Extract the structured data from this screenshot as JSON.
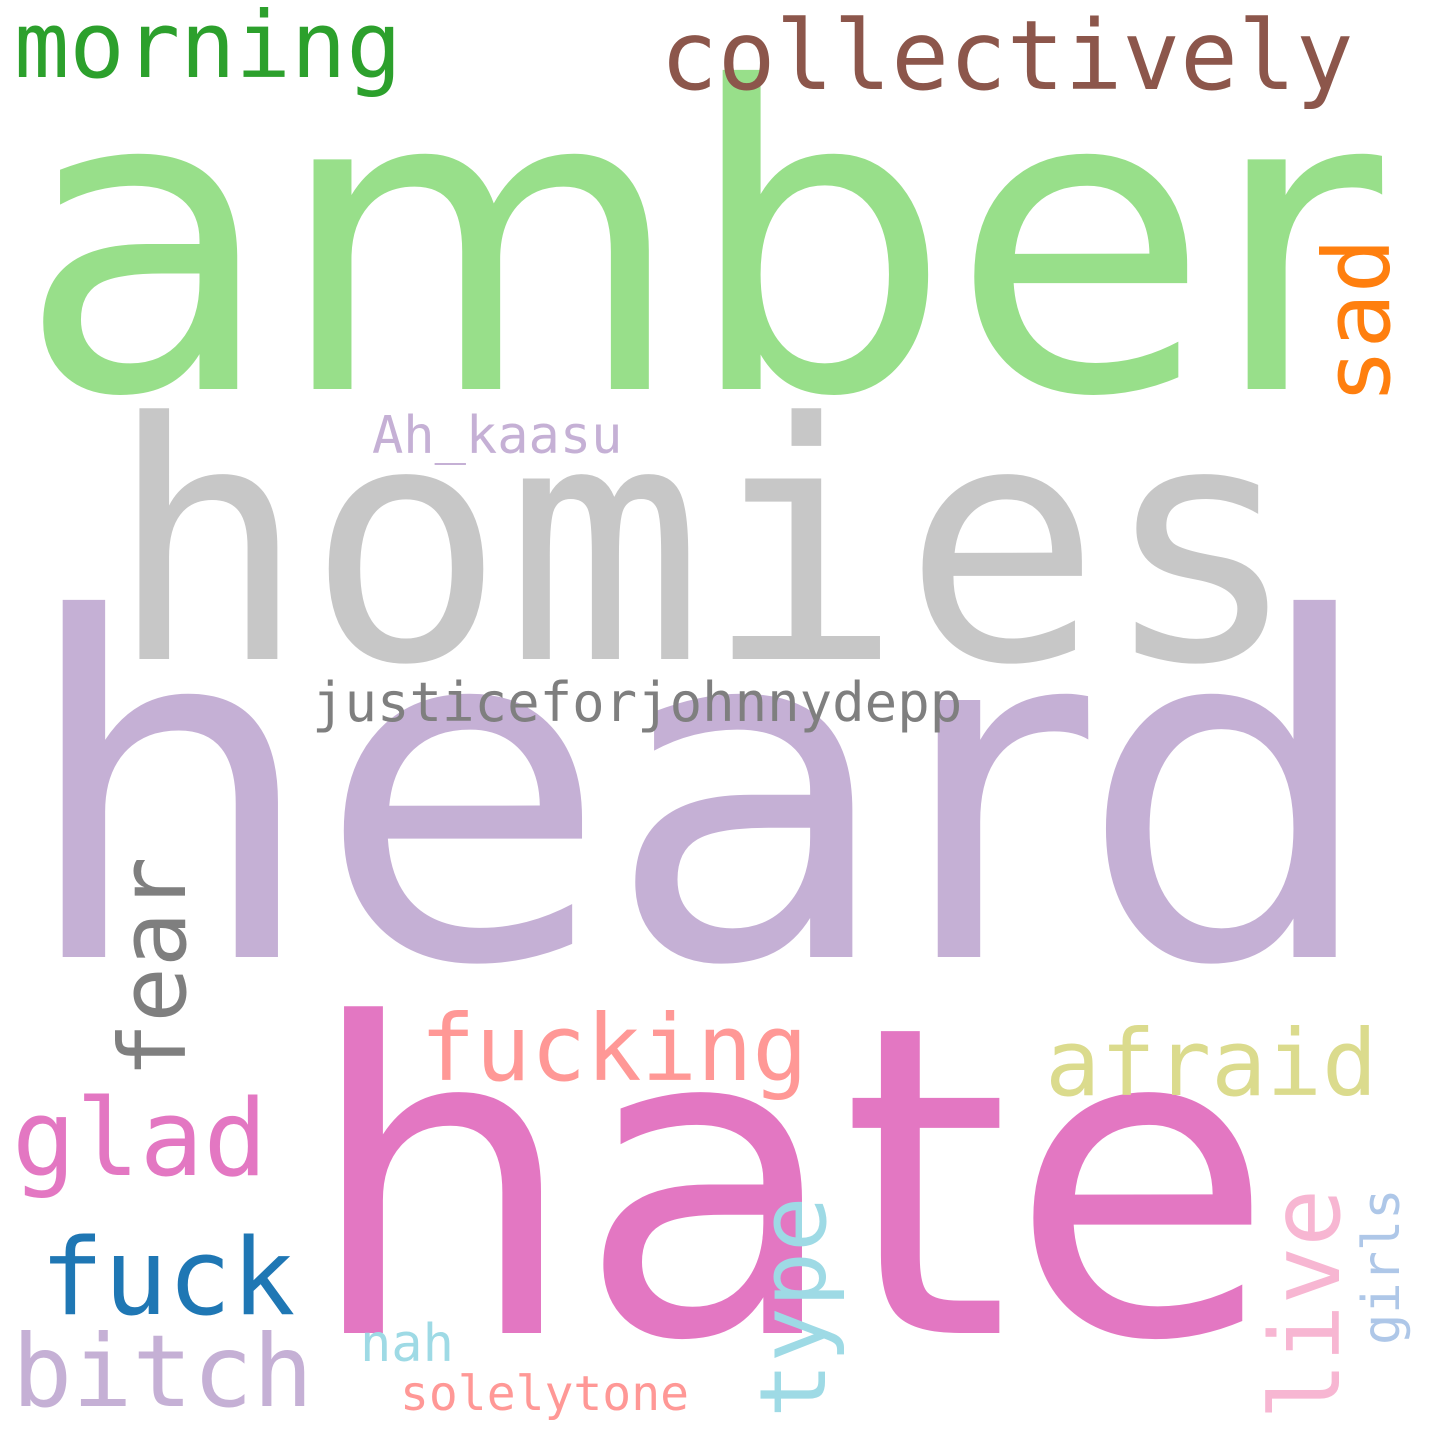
{
  "word_cloud": {
    "background": "#ffffff",
    "words": [
      {
        "key": "amber",
        "text": "amber",
        "color": "#98df8a",
        "orientation": "horizontal"
      },
      {
        "key": "homies",
        "text": "homies",
        "color": "#c7c7c7",
        "orientation": "horizontal"
      },
      {
        "key": "heard",
        "text": "heard",
        "color": "#c5b0d5",
        "orientation": "horizontal"
      },
      {
        "key": "hate",
        "text": "hate",
        "color": "#e377c2",
        "orientation": "horizontal"
      },
      {
        "key": "morning",
        "text": "morning",
        "color": "#2ca02c",
        "orientation": "horizontal"
      },
      {
        "key": "collectively",
        "text": "collectively",
        "color": "#8c564b",
        "orientation": "horizontal"
      },
      {
        "key": "sad",
        "text": "sad",
        "color": "#ff7f0e",
        "orientation": "vertical"
      },
      {
        "key": "ah_kaasu",
        "text": "Ah_kaasu",
        "color": "#c5b0d5",
        "orientation": "horizontal"
      },
      {
        "key": "justiceforjohnnydepp",
        "text": "justiceforjohnnydepp",
        "color": "#7f7f7f",
        "orientation": "horizontal"
      },
      {
        "key": "fear",
        "text": "fear",
        "color": "#7f7f7f",
        "orientation": "vertical"
      },
      {
        "key": "fucking",
        "text": "fucking",
        "color": "#ff9896",
        "orientation": "horizontal"
      },
      {
        "key": "afraid",
        "text": "afraid",
        "color": "#dbdb8d",
        "orientation": "horizontal"
      },
      {
        "key": "glad",
        "text": "glad",
        "color": "#e377c2",
        "orientation": "horizontal"
      },
      {
        "key": "fuck",
        "text": "fuck",
        "color": "#1f77b4",
        "orientation": "horizontal"
      },
      {
        "key": "bitch",
        "text": "bitch",
        "color": "#c5b0d5",
        "orientation": "horizontal"
      },
      {
        "key": "type",
        "text": "type",
        "color": "#9edae5",
        "orientation": "vertical"
      },
      {
        "key": "live",
        "text": "live",
        "color": "#f7b6d2",
        "orientation": "vertical"
      },
      {
        "key": "girls",
        "text": "girls",
        "color": "#aec7e8",
        "orientation": "vertical"
      },
      {
        "key": "nah",
        "text": "nah",
        "color": "#9edae5",
        "orientation": "horizontal"
      },
      {
        "key": "solelytone",
        "text": "solelytone",
        "color": "#ff9896",
        "orientation": "horizontal"
      }
    ]
  }
}
